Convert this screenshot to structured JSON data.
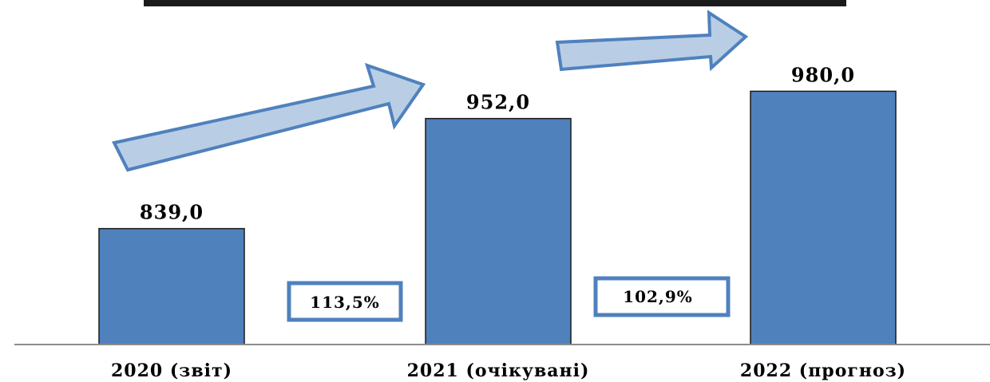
{
  "chart_data": {
    "type": "bar",
    "categories": [
      "2020 (звіт)",
      "2021 (очікувані)",
      "2022 (прогноз)"
    ],
    "values": [
      839.0,
      952.0,
      980.0
    ],
    "value_labels": [
      "839,0",
      "952,0",
      "980,0"
    ],
    "growth": [
      {
        "from": "2020 (звіт)",
        "to": "2021 (очікувані)",
        "label": "113,5%"
      },
      {
        "from": "2021 (очікувані)",
        "to": "2022 (прогноз)",
        "label": "102,9%"
      }
    ],
    "ylim": [
      720,
      1000
    ],
    "grid": false,
    "legend": "none",
    "colors": {
      "bar": "#4f81bd",
      "bar_edge": "#1a1a1a",
      "arrow_fill": "#b9cde5",
      "arrow_edge": "#4f81bd",
      "badge_edge": "#4f81bd"
    }
  }
}
